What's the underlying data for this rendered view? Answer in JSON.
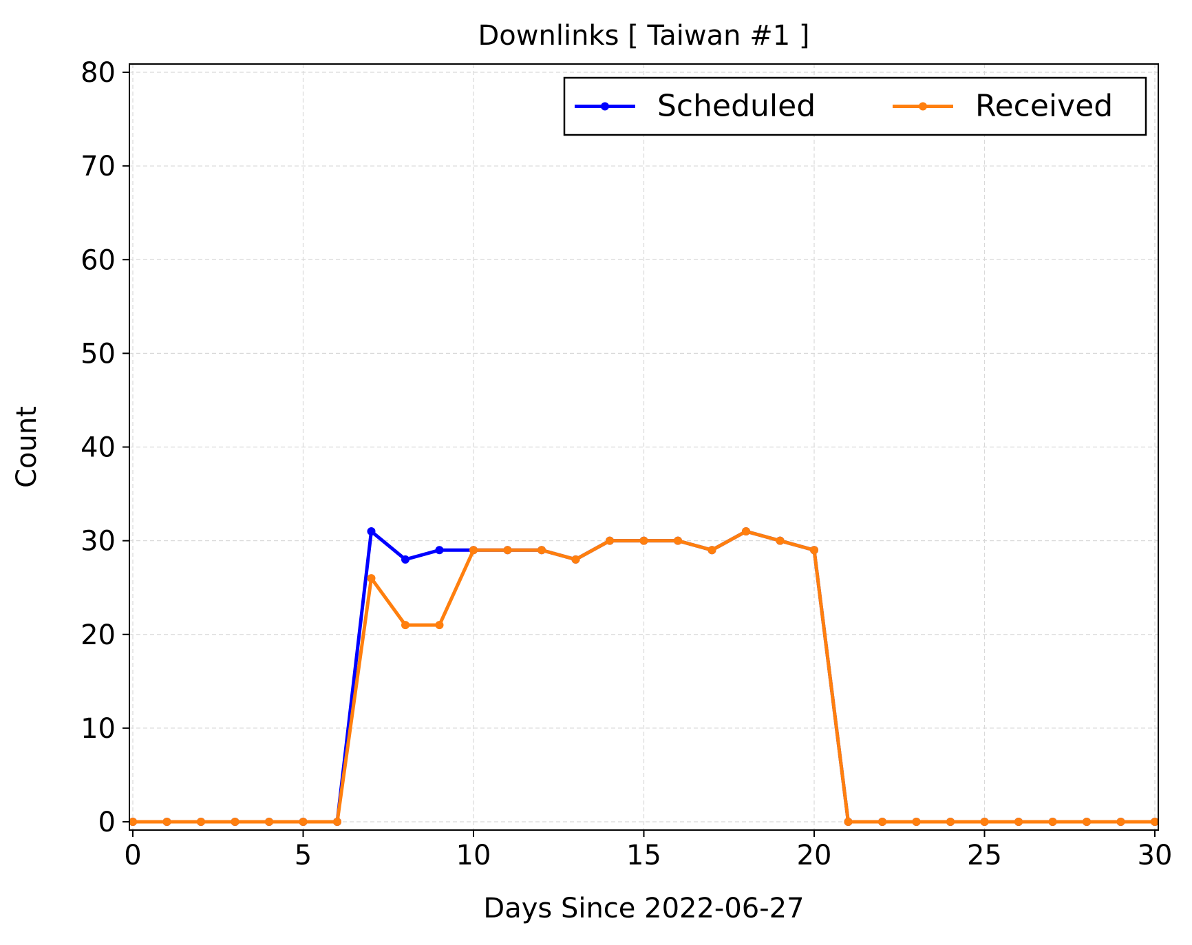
{
  "chart_data": {
    "type": "line",
    "title": "Downlinks [ Taiwan #1 ]",
    "xlabel": "Days Since 2022-06-27",
    "ylabel": "Count",
    "xlim": [
      0,
      30
    ],
    "ylim": [
      0,
      80
    ],
    "xticks": [
      0,
      5,
      10,
      15,
      20,
      25,
      30
    ],
    "yticks": [
      0,
      10,
      20,
      30,
      40,
      50,
      60,
      70,
      80
    ],
    "grid": true,
    "legend_position": "top-right",
    "x": [
      0,
      1,
      2,
      3,
      4,
      5,
      6,
      7,
      8,
      9,
      10,
      11,
      12,
      13,
      14,
      15,
      16,
      17,
      18,
      19,
      20,
      21,
      22,
      23,
      24,
      25,
      26,
      27,
      28,
      29,
      30
    ],
    "series": [
      {
        "name": "Scheduled",
        "color": "#0000ff",
        "values": [
          0,
          0,
          0,
          0,
          0,
          0,
          0,
          31,
          28,
          29,
          29,
          29,
          29,
          28,
          30,
          30,
          30,
          29,
          31,
          30,
          29,
          0,
          0,
          0,
          0,
          0,
          0,
          0,
          0,
          0,
          0
        ]
      },
      {
        "name": "Received",
        "color": "#ff7f0e",
        "values": [
          0,
          0,
          0,
          0,
          0,
          0,
          0,
          26,
          21,
          21,
          29,
          29,
          29,
          28,
          30,
          30,
          30,
          29,
          31,
          30,
          29,
          0,
          0,
          0,
          0,
          0,
          0,
          0,
          0,
          0,
          0
        ]
      }
    ]
  }
}
